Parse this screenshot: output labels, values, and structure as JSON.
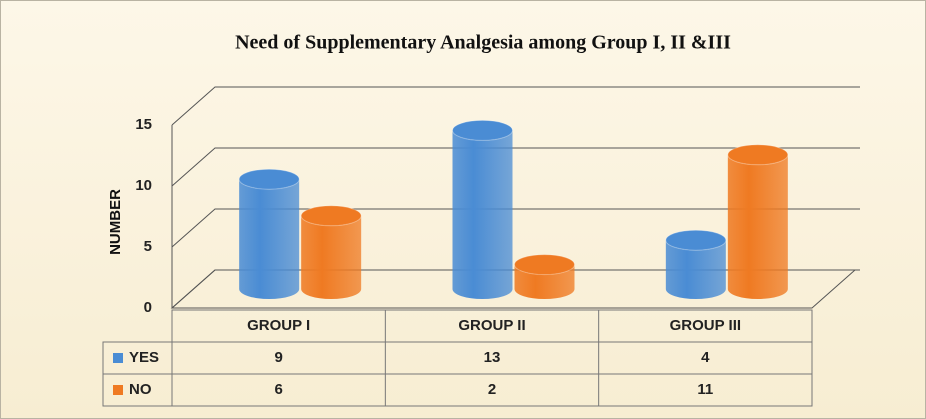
{
  "chart_data": {
    "type": "bar3d",
    "title": "Need of Supplementary Analgesia among Group I, II &III",
    "y_label": "NUMBER",
    "categories": [
      "GROUP I",
      "GROUP II",
      "GROUP III"
    ],
    "series": [
      {
        "name": "YES",
        "color": "#4a8cd4",
        "values": [
          9,
          13,
          4
        ]
      },
      {
        "name": "NO",
        "color": "#ef7a22",
        "values": [
          6,
          2,
          11
        ]
      }
    ],
    "ylim": [
      0,
      15
    ],
    "yticks": [
      0,
      5,
      10,
      15
    ],
    "grid": true
  }
}
